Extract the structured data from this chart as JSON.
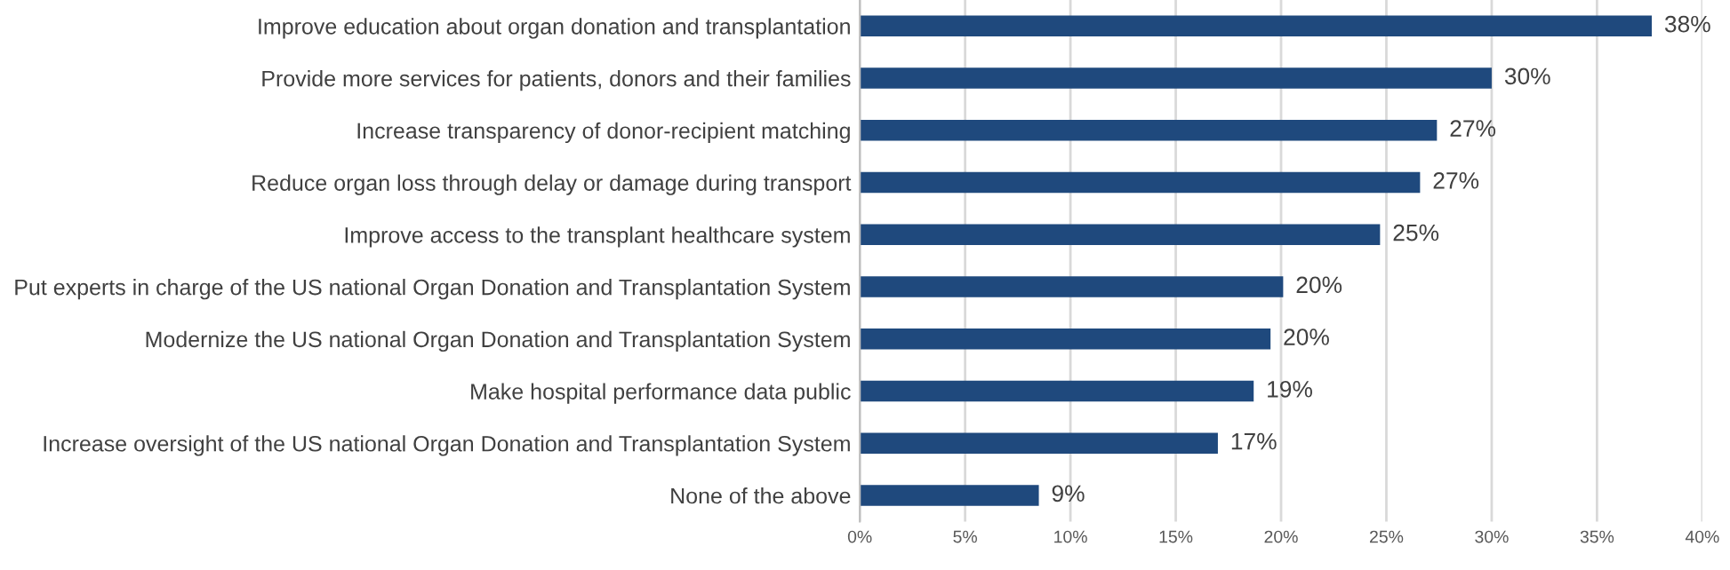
{
  "chart_data": {
    "type": "bar",
    "orientation": "horizontal",
    "categories": [
      "Improve education about organ donation and transplantation",
      "Provide more services for patients, donors and their families",
      "Increase transparency of donor-recipient matching",
      "Reduce organ loss through delay or damage during transport",
      "Improve access to the transplant healthcare system",
      "Put experts in charge of the US national Organ Donation and Transplantation System",
      "Modernize the US national Organ Donation and Transplantation System",
      "Make hospital performance data public",
      "Increase oversight of the US national Organ Donation and Transplantation System",
      "None of the above"
    ],
    "values": [
      37.6,
      30.0,
      27.4,
      26.6,
      24.7,
      20.1,
      19.5,
      18.7,
      17.0,
      8.5
    ],
    "value_labels": [
      "38%",
      "30%",
      "27%",
      "27%",
      "25%",
      "20%",
      "20%",
      "19%",
      "17%",
      "9%"
    ],
    "color": "#1f497d",
    "xlim": [
      0,
      40
    ],
    "xticks": [
      {
        "value": 0,
        "label": "0%"
      },
      {
        "value": 5,
        "label": "5%"
      },
      {
        "value": 10,
        "label": "10%"
      },
      {
        "value": 15,
        "label": "15%"
      },
      {
        "value": 20,
        "label": "20%"
      },
      {
        "value": 25,
        "label": "25%"
      },
      {
        "value": 30,
        "label": "30%"
      },
      {
        "value": 35,
        "label": "35%"
      },
      {
        "value": 40,
        "label": "40%"
      }
    ],
    "grid": "x",
    "legend": false
  }
}
